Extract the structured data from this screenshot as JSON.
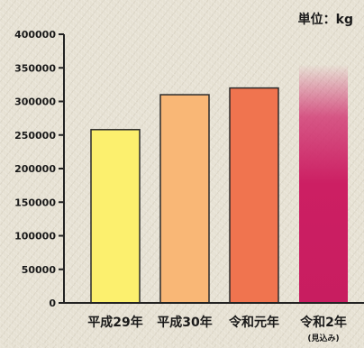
{
  "chart_data": {
    "type": "bar",
    "unit_label": "単位：kg",
    "categories": [
      "平成29年",
      "平成30年",
      "令和元年",
      "令和2年"
    ],
    "category_notes": [
      "",
      "",
      "",
      "(見込み)"
    ],
    "values": [
      258000,
      310000,
      320000,
      355000
    ],
    "ylim": [
      0,
      400000
    ],
    "yticks": [
      0,
      50000,
      100000,
      150000,
      200000,
      250000,
      300000,
      350000,
      400000
    ],
    "ytick_labels": [
      "0",
      "50000",
      "100000",
      "150000",
      "200000",
      "250000",
      "300000",
      "350000",
      "400000"
    ],
    "colors": [
      "#fcf06e",
      "#f9b776",
      "#f0744f",
      "#cc1f63"
    ],
    "grid": false,
    "legend": "none"
  }
}
